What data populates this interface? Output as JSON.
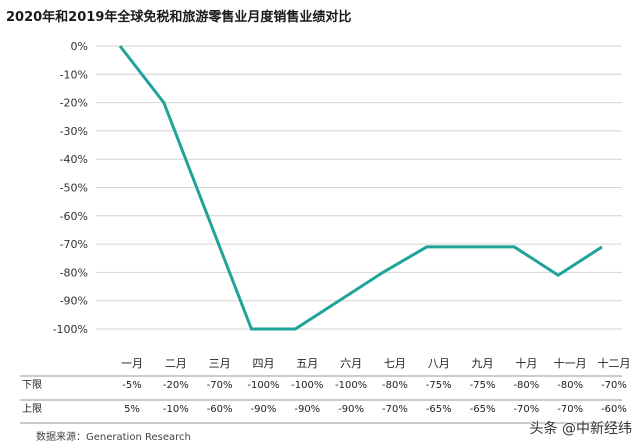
{
  "chart_data": {
    "type": "line",
    "title": "2020年和2019年全球免税和旅游零售业月度销售业绩对比",
    "categories": [
      "一月",
      "二月",
      "三月",
      "四月",
      "五月",
      "六月",
      "七月",
      "八月",
      "九月",
      "十月",
      "十一月",
      "十二月"
    ],
    "series": [
      {
        "values": [
          0,
          -20,
          -60,
          -100,
          -100,
          -90,
          -80,
          -71,
          -71,
          -71,
          -81,
          -71
        ]
      }
    ],
    "y_ticks": [
      "0%",
      "-10%",
      "-20%",
      "-30%",
      "-40%",
      "-50%",
      "-60%",
      "-70%",
      "-80%",
      "-90%",
      "-100%"
    ],
    "ylim": [
      -100,
      0
    ],
    "grid": true,
    "line_color": "#1fa39a",
    "table": {
      "rows": [
        {
          "label": "下限",
          "values": [
            "-5%",
            "-20%",
            "-70%",
            "-100%",
            "-100%",
            "-100%",
            "-80%",
            "-75%",
            "-75%",
            "-80%",
            "-80%",
            "-70%"
          ]
        },
        {
          "label": "上限",
          "values": [
            "5%",
            "-10%",
            "-60%",
            "-90%",
            "-90%",
            "-90%",
            "-70%",
            "-65%",
            "-65%",
            "-70%",
            "-70%",
            "-60%"
          ]
        }
      ]
    }
  },
  "source": "数据来源：Generation Research",
  "watermark": "头条 @中新经纬"
}
